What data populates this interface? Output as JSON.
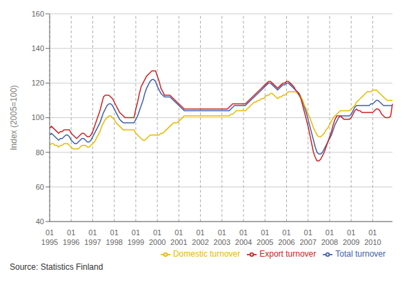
{
  "chart_data": {
    "type": "line",
    "ylabel": "Index (2005=100)",
    "annotations": [
      "Source: Statistics Finland"
    ],
    "ylim": [
      40,
      160
    ],
    "yticks": [
      40,
      60,
      80,
      100,
      120,
      140,
      160
    ],
    "grid": true,
    "legend": "lower right",
    "categories": [
      "01\n1995",
      null,
      null,
      null,
      null,
      null,
      null,
      null,
      null,
      null,
      null,
      null,
      "01\n1996",
      null,
      null,
      null,
      null,
      null,
      null,
      null,
      null,
      null,
      null,
      null,
      "01\n1997",
      null,
      null,
      null,
      null,
      null,
      null,
      null,
      null,
      null,
      null,
      null,
      "01\n1998",
      null,
      null,
      null,
      null,
      null,
      null,
      null,
      null,
      null,
      null,
      null,
      "01\n1999",
      null,
      null,
      null,
      null,
      null,
      null,
      null,
      null,
      null,
      null,
      null,
      "01\n2000",
      null,
      null,
      null,
      null,
      null,
      null,
      null,
      null,
      null,
      null,
      null,
      "01\n2001",
      null,
      null,
      null,
      null,
      null,
      null,
      null,
      null,
      null,
      null,
      null,
      "01\n2002",
      null,
      null,
      null,
      null,
      null,
      null,
      null,
      null,
      null,
      null,
      null,
      "01\n2003",
      null,
      null,
      null,
      null,
      null,
      null,
      null,
      null,
      null,
      null,
      null,
      "01\n2004",
      null,
      null,
      null,
      null,
      null,
      null,
      null,
      null,
      null,
      null,
      null,
      "01\n2005",
      null,
      null,
      null,
      null,
      null,
      null,
      null,
      null,
      null,
      null,
      null,
      "01\n2006",
      null,
      null,
      null,
      null,
      null,
      null,
      null,
      null,
      null,
      null,
      null,
      "01\n2007",
      null,
      null,
      null,
      null,
      null,
      null,
      null,
      null,
      null,
      null,
      null,
      "01\n2008",
      null,
      null,
      null,
      null,
      null,
      null,
      null,
      null,
      null,
      null,
      null,
      "01\n2009",
      null,
      null,
      null,
      null,
      null,
      null,
      null,
      null,
      null,
      null,
      null,
      "01\n2010",
      null,
      null,
      null,
      null,
      null,
      null,
      null,
      null,
      null,
      null,
      null
    ],
    "series": [
      {
        "name": "Total turnover",
        "color": "#3f60aa",
        "values": [
          90,
          91,
          90,
          89,
          88,
          87,
          88,
          88,
          89,
          90,
          90,
          89,
          87,
          86,
          85,
          85,
          86,
          87,
          88,
          88,
          87,
          86,
          86,
          87,
          89,
          91,
          93,
          95,
          97,
          100,
          103,
          105,
          107,
          108,
          108,
          107,
          105,
          103,
          101,
          99,
          98,
          97,
          97,
          97,
          97,
          97,
          97,
          97,
          99,
          101,
          104,
          107,
          110,
          114,
          117,
          119,
          121,
          122,
          122,
          121,
          118,
          116,
          114,
          113,
          112,
          112,
          112,
          112,
          111,
          110,
          109,
          108,
          107,
          106,
          105,
          104,
          104,
          104,
          104,
          104,
          104,
          104,
          104,
          104,
          104,
          104,
          104,
          104,
          104,
          104,
          104,
          104,
          104,
          104,
          104,
          104,
          104,
          104,
          104,
          104,
          104,
          105,
          106,
          107,
          107,
          107,
          107,
          107,
          107,
          107,
          108,
          109,
          110,
          111,
          112,
          113,
          114,
          115,
          116,
          117,
          118,
          119,
          120,
          120,
          119,
          118,
          117,
          116,
          117,
          118,
          119,
          119,
          120,
          120,
          119,
          118,
          117,
          116,
          115,
          114,
          112,
          109,
          106,
          103,
          99,
          95,
          91,
          87,
          83,
          80,
          79,
          79,
          80,
          82,
          84,
          86,
          88,
          90,
          93,
          96,
          98,
          100,
          101,
          101,
          101,
          101,
          101,
          101,
          102,
          104,
          106,
          107,
          107,
          107,
          107,
          107,
          107,
          107,
          107,
          108,
          108,
          109,
          110,
          110,
          109,
          108,
          107,
          107,
          107,
          107,
          107,
          107
        ]
      },
      {
        "name": "Domestic turnover",
        "color": "#e8b800",
        "values": [
          84,
          85,
          85,
          84,
          84,
          83,
          84,
          84,
          85,
          85,
          85,
          84,
          83,
          82,
          82,
          82,
          82,
          83,
          84,
          84,
          84,
          83,
          83,
          84,
          85,
          86,
          88,
          90,
          92,
          95,
          97,
          99,
          100,
          101,
          101,
          100,
          99,
          97,
          96,
          95,
          94,
          93,
          93,
          93,
          93,
          93,
          93,
          93,
          91,
          90,
          89,
          88,
          87,
          87,
          88,
          89,
          90,
          90,
          90,
          90,
          90,
          90,
          91,
          91,
          92,
          93,
          94,
          95,
          96,
          97,
          97,
          97,
          98,
          99,
          100,
          101,
          101,
          101,
          101,
          101,
          101,
          101,
          101,
          101,
          101,
          101,
          101,
          101,
          101,
          101,
          101,
          101,
          101,
          101,
          101,
          101,
          101,
          101,
          101,
          101,
          101,
          102,
          102,
          103,
          104,
          104,
          104,
          104,
          104,
          104,
          105,
          106,
          107,
          108,
          109,
          109,
          110,
          110,
          111,
          111,
          112,
          113,
          113,
          114,
          114,
          113,
          112,
          111,
          112,
          112,
          113,
          113,
          114,
          115,
          115,
          115,
          115,
          115,
          114,
          113,
          112,
          110,
          107,
          105,
          102,
          100,
          97,
          94,
          92,
          90,
          89,
          89,
          90,
          91,
          93,
          94,
          96,
          98,
          100,
          101,
          102,
          103,
          104,
          104,
          104,
          104,
          104,
          104,
          105,
          106,
          107,
          109,
          110,
          111,
          112,
          113,
          114,
          115,
          115,
          115,
          116,
          116,
          116,
          115,
          114,
          113,
          112,
          111,
          110,
          110,
          110,
          110
        ]
      },
      {
        "name": "Export turnover",
        "color": "#cc2222",
        "values": [
          94,
          95,
          94,
          93,
          92,
          91,
          92,
          92,
          93,
          93,
          93,
          93,
          91,
          90,
          89,
          88,
          89,
          90,
          91,
          91,
          90,
          89,
          89,
          90,
          92,
          95,
          98,
          101,
          104,
          108,
          112,
          113,
          113,
          113,
          112,
          111,
          109,
          107,
          105,
          103,
          102,
          101,
          100,
          100,
          100,
          100,
          100,
          100,
          105,
          109,
          114,
          118,
          120,
          122,
          124,
          125,
          126,
          127,
          127,
          127,
          124,
          121,
          117,
          115,
          113,
          113,
          113,
          113,
          112,
          111,
          110,
          109,
          108,
          107,
          106,
          105,
          105,
          105,
          105,
          105,
          105,
          105,
          105,
          105,
          105,
          105,
          105,
          105,
          105,
          105,
          105,
          105,
          105,
          105,
          105,
          105,
          105,
          105,
          105,
          105,
          106,
          107,
          108,
          108,
          108,
          108,
          108,
          108,
          108,
          108,
          109,
          110,
          111,
          112,
          113,
          114,
          115,
          116,
          117,
          118,
          119,
          120,
          121,
          121,
          120,
          119,
          118,
          117,
          118,
          119,
          120,
          120,
          121,
          121,
          120,
          119,
          118,
          116,
          115,
          113,
          111,
          107,
          103,
          99,
          95,
          90,
          85,
          80,
          77,
          75,
          75,
          76,
          78,
          80,
          83,
          86,
          89,
          92,
          96,
          99,
          101,
          101,
          101,
          100,
          99,
          99,
          99,
          99,
          100,
          102,
          104,
          105,
          104,
          104,
          103,
          103,
          103,
          103,
          103,
          103,
          103,
          104,
          105,
          105,
          104,
          102,
          101,
          100,
          100,
          100,
          101,
          108
        ]
      }
    ]
  }
}
